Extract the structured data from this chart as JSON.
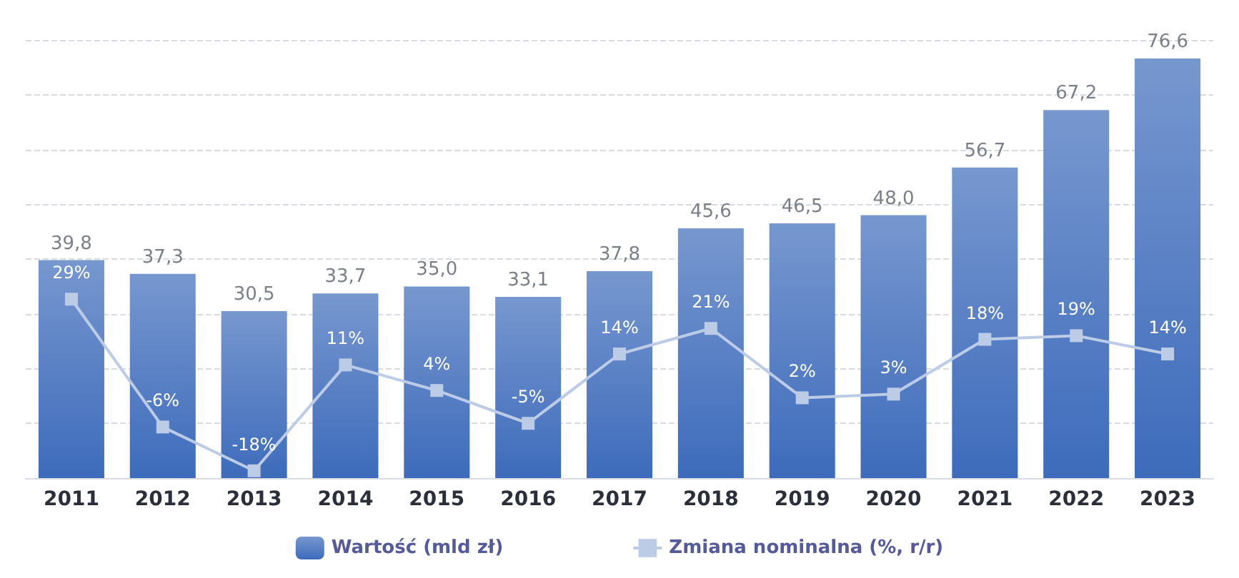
{
  "chart_data": {
    "type": "bar",
    "categories": [
      "2011",
      "2012",
      "2013",
      "2014",
      "2015",
      "2016",
      "2017",
      "2018",
      "2019",
      "2020",
      "2021",
      "2022",
      "2023"
    ],
    "series": [
      {
        "name": "Wartość (mld zł)",
        "color": "#3d6bbb",
        "values": [
          39.8,
          37.3,
          30.5,
          33.7,
          35.0,
          33.1,
          37.8,
          45.6,
          46.5,
          48.0,
          56.7,
          67.2,
          76.6
        ],
        "value_labels": [
          "39,8",
          "37,3",
          "30,5",
          "33,7",
          "35,0",
          "33,1",
          "37,8",
          "45,6",
          "46,5",
          "48,0",
          "56,7",
          "67,2",
          "76,6"
        ]
      },
      {
        "name": "Zmiana nominalna (%, r/r)",
        "type": "line",
        "axis": "y2",
        "color": "#bccbe6",
        "marker": "square",
        "values": [
          29,
          -6,
          -18,
          11,
          4,
          -5,
          14,
          21,
          2,
          3,
          18,
          19,
          14
        ],
        "value_labels": [
          "29%",
          "-6%",
          "-18%",
          "11%",
          "4%",
          "-5%",
          "14%",
          "21%",
          "2%",
          "3%",
          "18%",
          "19%",
          "14%"
        ]
      }
    ],
    "ylim": [
      0,
      80
    ],
    "yticks": [
      0,
      10,
      20,
      30,
      40,
      50,
      60,
      70,
      80
    ],
    "y2lim": [
      -20,
      100
    ],
    "tick_labels": "x",
    "grid": "y",
    "legend": "bottom"
  }
}
